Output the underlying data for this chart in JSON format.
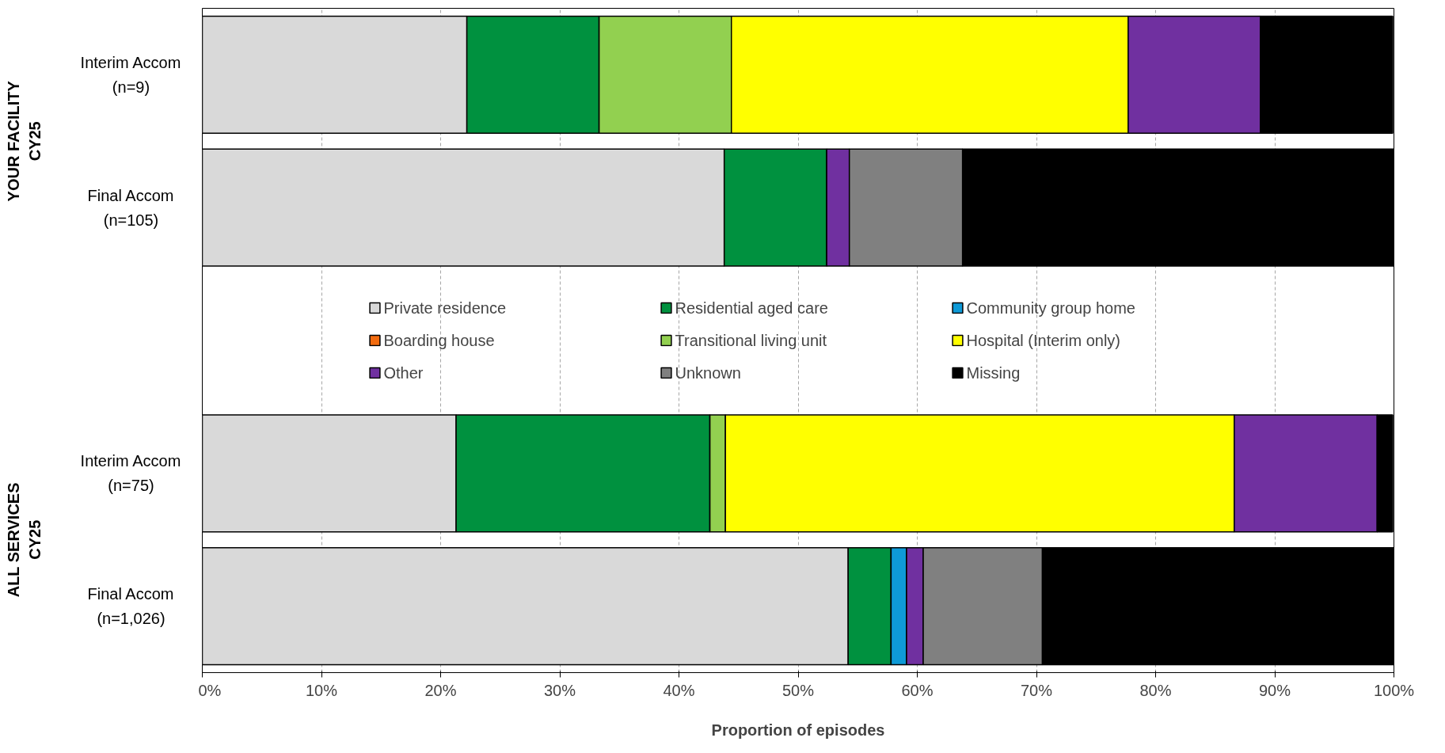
{
  "chart_data": {
    "type": "bar",
    "orientation": "horizontal",
    "stacked": true,
    "xlabel": "Proportion of episodes",
    "categories": [
      "Interim Accom\n(n=9)",
      "Final Accom\n(n=105)",
      null,
      "Interim Accom\n(n=75)",
      "Final Accom\n(n=1,026)"
    ],
    "annotations": [
      "YOUR FACILITY\nCY25",
      "ALL SERVICES\nCY25"
    ],
    "series": [
      {
        "name": "Private residence",
        "color": "#d9d9d9",
        "values": [
          22.2,
          43.8,
          null,
          21.3,
          54.2
        ]
      },
      {
        "name": "Residential aged care",
        "color": "#00913f",
        "values": [
          11.1,
          8.6,
          null,
          21.3,
          3.6
        ]
      },
      {
        "name": "Community group home",
        "color": "#0e9ad7",
        "values": [
          0,
          0,
          null,
          0,
          1.3
        ]
      },
      {
        "name": "Boarding house",
        "color": "#f26b0f",
        "values": [
          0,
          0,
          null,
          0,
          0
        ]
      },
      {
        "name": "Transitional living unit",
        "color": "#92d050",
        "values": [
          11.1,
          0,
          null,
          1.3,
          0
        ]
      },
      {
        "name": "Hospital (Interim only)",
        "color": "#ffff00",
        "values": [
          33.3,
          0,
          null,
          42.7,
          0
        ]
      },
      {
        "name": "Other",
        "color": "#7030a0",
        "values": [
          11.1,
          1.9,
          null,
          12.0,
          1.4
        ]
      },
      {
        "name": "Unknown",
        "color": "#808080",
        "values": [
          0,
          9.5,
          null,
          0,
          10.0
        ]
      },
      {
        "name": "Missing",
        "color": "#000000",
        "values": [
          11.1,
          36.2,
          null,
          1.3,
          29.5
        ]
      }
    ],
    "xlim": [
      0,
      100
    ],
    "xticks": [
      {
        "value": 0,
        "label": "0%"
      },
      {
        "value": 10,
        "label": "10%"
      },
      {
        "value": 20,
        "label": "20%"
      },
      {
        "value": 30,
        "label": "30%"
      },
      {
        "value": 40,
        "label": "40%"
      },
      {
        "value": 50,
        "label": "50%"
      },
      {
        "value": 60,
        "label": "60%"
      },
      {
        "value": 70,
        "label": "70%"
      },
      {
        "value": 80,
        "label": "80%"
      },
      {
        "value": 90,
        "label": "90%"
      },
      {
        "value": 100,
        "label": "100%"
      }
    ],
    "grid": "x",
    "legend": "center"
  }
}
